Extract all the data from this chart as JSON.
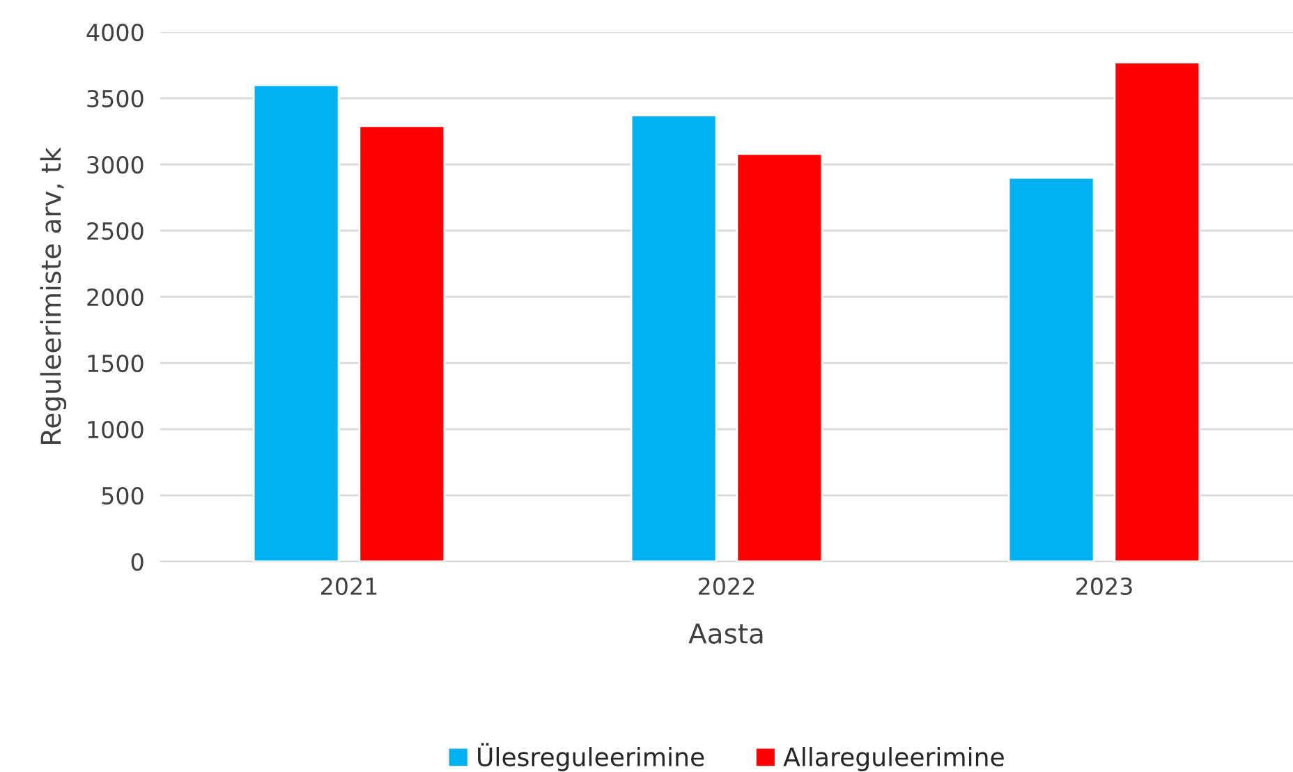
{
  "chart_data": {
    "type": "bar",
    "xlabel": "Aasta",
    "ylabel": "Reguleerimiste arv, tk",
    "categories": [
      "2021",
      "2022",
      "2023"
    ],
    "series": [
      {
        "name": "Ülesreguleerimine",
        "color": "#00b0f0",
        "values": [
          3600,
          3370,
          2900
        ]
      },
      {
        "name": "Allareguleerimine",
        "color": "#ff0000",
        "values": [
          3290,
          3080,
          3770
        ]
      }
    ],
    "ylim": [
      0,
      4000
    ],
    "yticks": [
      0,
      500,
      1000,
      1500,
      2000,
      2500,
      3000,
      3500,
      4000
    ],
    "grid": "y",
    "legend": "bottom"
  }
}
